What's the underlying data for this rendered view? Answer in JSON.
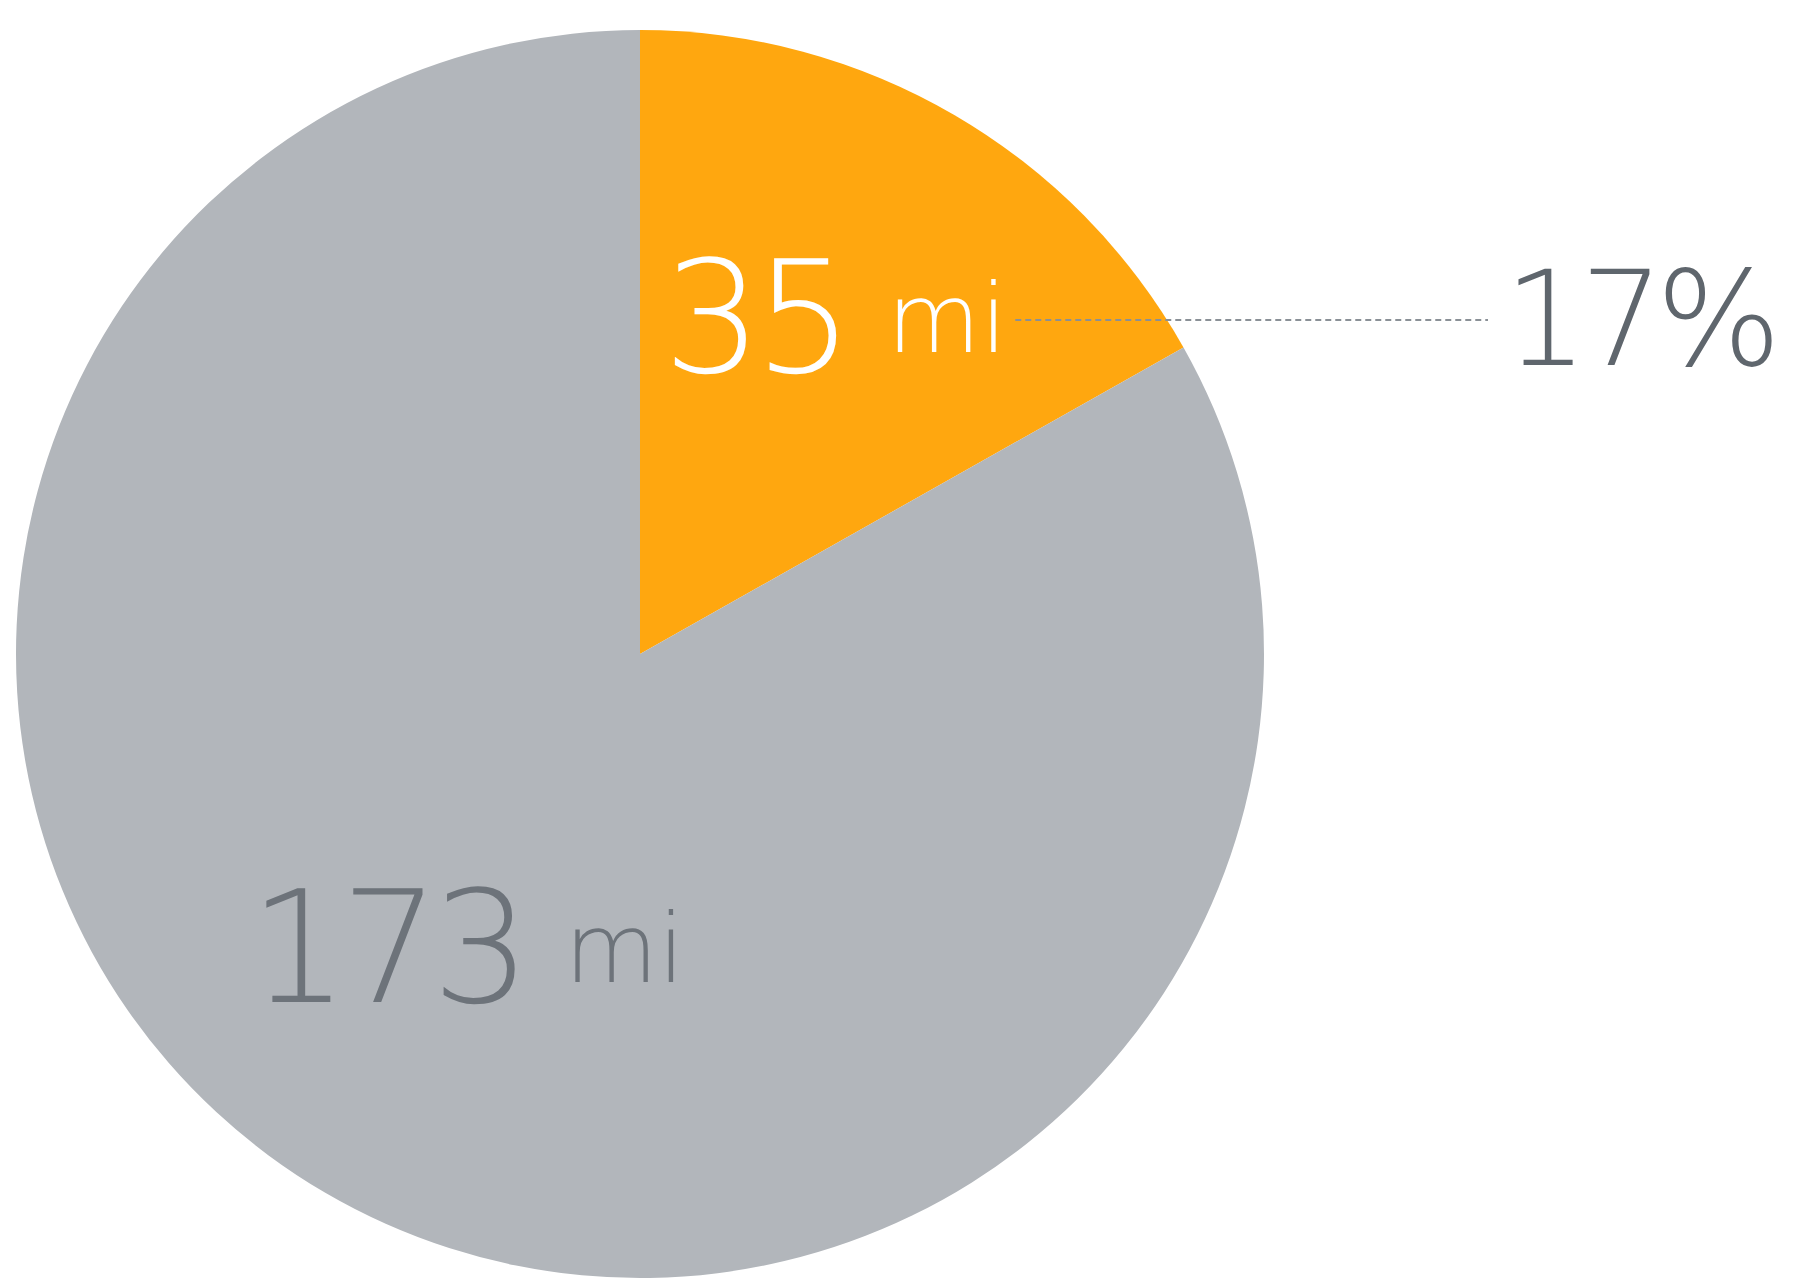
{
  "chart_data": {
    "type": "pie",
    "categories": [
      null,
      null
    ],
    "values": [
      35,
      173
    ],
    "colors": [
      "#ffa70f",
      "#b2b6bb"
    ],
    "value_labels": [
      "35 mi",
      "173 mi"
    ],
    "annotations": [
      "17%"
    ]
  }
}
